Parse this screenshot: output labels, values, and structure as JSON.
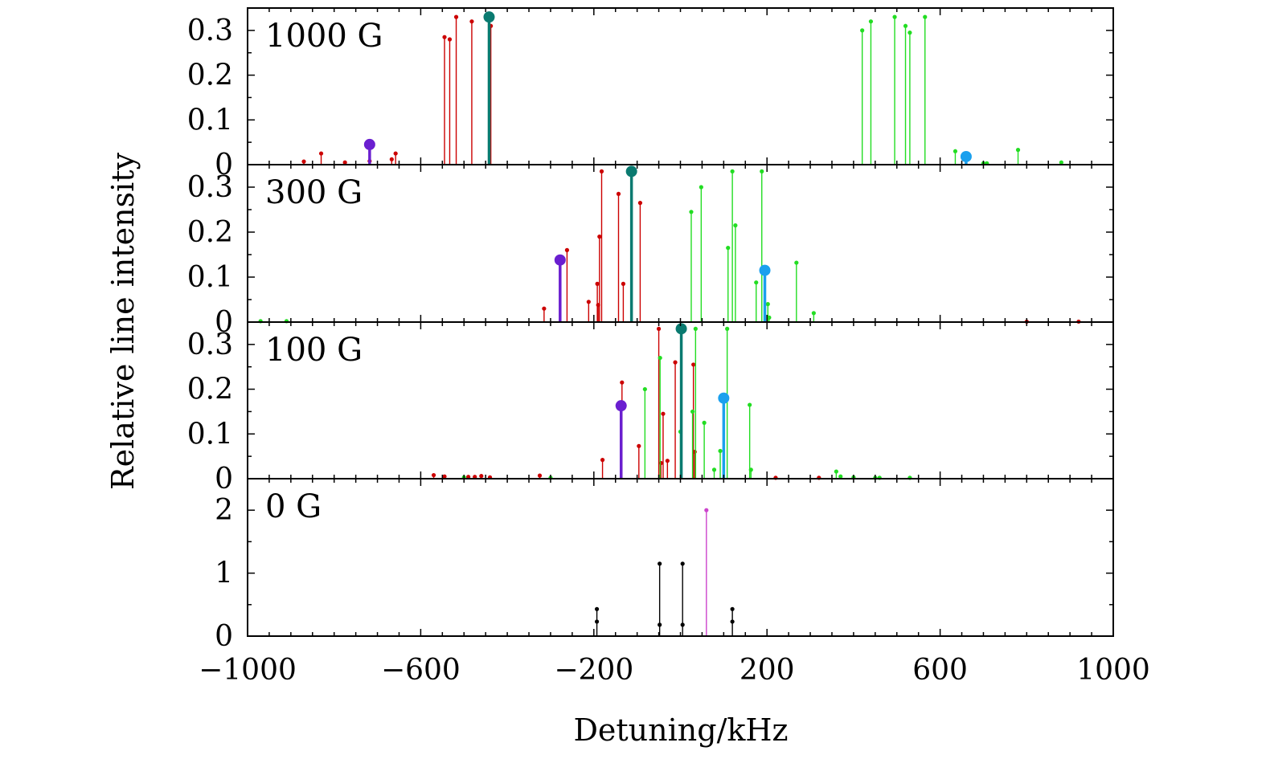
{
  "chart_data": {
    "type": "stem",
    "xlabel": "Detuning/kHz",
    "ylabel": "Relative line intensity",
    "xlim": [
      -1000,
      1000
    ],
    "x_ticks": [
      "−1000",
      "−600",
      "−200",
      "200",
      "600",
      "1000"
    ],
    "x_tick_values": [
      -1000,
      -600,
      -200,
      200,
      600,
      1000
    ],
    "colors": {
      "red": "#cc0000",
      "green": "#22dd22",
      "teal": "#0a7a70",
      "purple": "#6a1fd0",
      "blue": "#1aa0ee",
      "black": "#000000",
      "magenta": "#cc44cc"
    },
    "panels": [
      {
        "label": "1000 G",
        "ylim": [
          0,
          0.35
        ],
        "y_ticks": [
          "0",
          "0.1",
          "0.2",
          "0.3"
        ],
        "y_tick_values": [
          0,
          0.1,
          0.2,
          0.3
        ],
        "lines": [
          {
            "x": -870,
            "y": 0.007,
            "c": "red"
          },
          {
            "x": -830,
            "y": 0.025,
            "c": "red"
          },
          {
            "x": -775,
            "y": 0.005,
            "c": "red"
          },
          {
            "x": -718,
            "y": 0.008,
            "c": "red"
          },
          {
            "x": -667,
            "y": 0.012,
            "c": "red"
          },
          {
            "x": -658,
            "y": 0.025,
            "c": "red"
          },
          {
            "x": -545,
            "y": 0.285,
            "c": "red"
          },
          {
            "x": -533,
            "y": 0.28,
            "c": "red"
          },
          {
            "x": -518,
            "y": 0.33,
            "c": "red"
          },
          {
            "x": -482,
            "y": 0.32,
            "c": "red"
          },
          {
            "x": -438,
            "y": 0.31,
            "c": "red"
          },
          {
            "x": 420,
            "y": 0.3,
            "c": "green"
          },
          {
            "x": 440,
            "y": 0.32,
            "c": "green"
          },
          {
            "x": 495,
            "y": 0.33,
            "c": "green"
          },
          {
            "x": 520,
            "y": 0.31,
            "c": "green"
          },
          {
            "x": 530,
            "y": 0.295,
            "c": "green"
          },
          {
            "x": 565,
            "y": 0.33,
            "c": "green"
          },
          {
            "x": 635,
            "y": 0.03,
            "c": "green"
          },
          {
            "x": 700,
            "y": 0.003,
            "c": "green"
          },
          {
            "x": 708,
            "y": 0.003,
            "c": "green"
          },
          {
            "x": 780,
            "y": 0.033,
            "c": "green"
          },
          {
            "x": 880,
            "y": 0.005,
            "c": "green"
          },
          {
            "x": -718,
            "y": 0.045,
            "c": "purple",
            "big": true
          },
          {
            "x": -442,
            "y": 0.33,
            "c": "teal",
            "big": true
          },
          {
            "x": 660,
            "y": 0.018,
            "c": "blue",
            "big": true
          }
        ]
      },
      {
        "label": "300 G",
        "ylim": [
          0,
          0.35
        ],
        "y_ticks": [
          "0",
          "0.1",
          "0.2",
          "0.3"
        ],
        "y_tick_values": [
          0,
          0.1,
          0.2,
          0.3
        ],
        "lines": [
          {
            "x": -970,
            "y": 0.002,
            "c": "green"
          },
          {
            "x": -910,
            "y": 0.002,
            "c": "green"
          },
          {
            "x": -315,
            "y": 0.03,
            "c": "red"
          },
          {
            "x": -262,
            "y": 0.16,
            "c": "red"
          },
          {
            "x": -212,
            "y": 0.045,
            "c": "red"
          },
          {
            "x": -192,
            "y": 0.085,
            "c": "red"
          },
          {
            "x": -190,
            "y": 0.038,
            "c": "red"
          },
          {
            "x": -187,
            "y": 0.19,
            "c": "red"
          },
          {
            "x": -182,
            "y": 0.335,
            "c": "red"
          },
          {
            "x": -143,
            "y": 0.285,
            "c": "red"
          },
          {
            "x": -132,
            "y": 0.085,
            "c": "red"
          },
          {
            "x": -93,
            "y": 0.265,
            "c": "red"
          },
          {
            "x": 800,
            "y": 0.001,
            "c": "red"
          },
          {
            "x": 920,
            "y": 0.001,
            "c": "red"
          },
          {
            "x": 25,
            "y": 0.245,
            "c": "green"
          },
          {
            "x": 48,
            "y": 0.3,
            "c": "green"
          },
          {
            "x": 110,
            "y": 0.165,
            "c": "green"
          },
          {
            "x": 120,
            "y": 0.335,
            "c": "green"
          },
          {
            "x": 127,
            "y": 0.215,
            "c": "green"
          },
          {
            "x": 175,
            "y": 0.088,
            "c": "green"
          },
          {
            "x": 188,
            "y": 0.335,
            "c": "green"
          },
          {
            "x": 202,
            "y": 0.04,
            "c": "green"
          },
          {
            "x": 205,
            "y": 0.01,
            "c": "green"
          },
          {
            "x": 268,
            "y": 0.132,
            "c": "green"
          },
          {
            "x": 308,
            "y": 0.02,
            "c": "green"
          },
          {
            "x": -278,
            "y": 0.138,
            "c": "purple",
            "big": true
          },
          {
            "x": -113,
            "y": 0.335,
            "c": "teal",
            "big": true
          },
          {
            "x": 195,
            "y": 0.115,
            "c": "blue",
            "big": true
          }
        ]
      },
      {
        "label": "100 G",
        "ylim": [
          0,
          0.35
        ],
        "y_ticks": [
          "0",
          "0.1",
          "0.2",
          "0.3"
        ],
        "y_tick_values": [
          0,
          0.1,
          0.2,
          0.3
        ],
        "lines": [
          {
            "x": -570,
            "y": 0.008,
            "c": "red"
          },
          {
            "x": -545,
            "y": 0.005,
            "c": "red"
          },
          {
            "x": -490,
            "y": 0.004,
            "c": "red"
          },
          {
            "x": -475,
            "y": 0.004,
            "c": "red"
          },
          {
            "x": -460,
            "y": 0.006,
            "c": "red"
          },
          {
            "x": -440,
            "y": 0.003,
            "c": "red"
          },
          {
            "x": -325,
            "y": 0.007,
            "c": "red"
          },
          {
            "x": -180,
            "y": 0.042,
            "c": "red"
          },
          {
            "x": -135,
            "y": 0.215,
            "c": "red"
          },
          {
            "x": -96,
            "y": 0.073,
            "c": "red"
          },
          {
            "x": -50,
            "y": 0.335,
            "c": "red"
          },
          {
            "x": -45,
            "y": 0.035,
            "c": "red"
          },
          {
            "x": -40,
            "y": 0.145,
            "c": "red"
          },
          {
            "x": -30,
            "y": 0.04,
            "c": "red"
          },
          {
            "x": -12,
            "y": 0.26,
            "c": "red"
          },
          {
            "x": 30,
            "y": 0.255,
            "c": "red"
          },
          {
            "x": 33,
            "y": 0.06,
            "c": "red"
          },
          {
            "x": 220,
            "y": 0.002,
            "c": "red"
          },
          {
            "x": 320,
            "y": 0.002,
            "c": "red"
          },
          {
            "x": -500,
            "y": 0.003,
            "c": "green"
          },
          {
            "x": -300,
            "y": 0.002,
            "c": "green"
          },
          {
            "x": -82,
            "y": 0.2,
            "c": "green"
          },
          {
            "x": -47,
            "y": 0.27,
            "c": "green"
          },
          {
            "x": 0,
            "y": 0.105,
            "c": "green"
          },
          {
            "x": 28,
            "y": 0.15,
            "c": "green"
          },
          {
            "x": 35,
            "y": 0.335,
            "c": "green"
          },
          {
            "x": 55,
            "y": 0.125,
            "c": "green"
          },
          {
            "x": 78,
            "y": 0.02,
            "c": "green"
          },
          {
            "x": 92,
            "y": 0.062,
            "c": "green"
          },
          {
            "x": 108,
            "y": 0.335,
            "c": "green"
          },
          {
            "x": 160,
            "y": 0.165,
            "c": "green"
          },
          {
            "x": 163,
            "y": 0.02,
            "c": "green"
          },
          {
            "x": 360,
            "y": 0.016,
            "c": "green"
          },
          {
            "x": 370,
            "y": 0.005,
            "c": "green"
          },
          {
            "x": 400,
            "y": 0.003,
            "c": "green"
          },
          {
            "x": 450,
            "y": 0.002,
            "c": "green"
          },
          {
            "x": 460,
            "y": 0.002,
            "c": "green"
          },
          {
            "x": 530,
            "y": 0.002,
            "c": "green"
          },
          {
            "x": -137,
            "y": 0.163,
            "c": "purple",
            "big": true
          },
          {
            "x": 2,
            "y": 0.335,
            "c": "teal",
            "big": true
          },
          {
            "x": 100,
            "y": 0.18,
            "c": "blue",
            "big": true
          }
        ]
      },
      {
        "label": "0 G",
        "ylim": [
          0,
          2.5
        ],
        "y_ticks": [
          "0",
          "1",
          "2"
        ],
        "y_tick_values": [
          0,
          1,
          2
        ],
        "lines": [
          {
            "x": -193,
            "y": 0.43,
            "c": "black",
            "dot2": 0.23
          },
          {
            "x": -48,
            "y": 1.15,
            "c": "black",
            "dot2": 0.18
          },
          {
            "x": 5,
            "y": 1.15,
            "c": "black",
            "dot2": 0.18
          },
          {
            "x": 60,
            "y": 2.0,
            "c": "magenta"
          },
          {
            "x": 120,
            "y": 0.43,
            "c": "black",
            "dot2": 0.23
          }
        ]
      }
    ]
  }
}
